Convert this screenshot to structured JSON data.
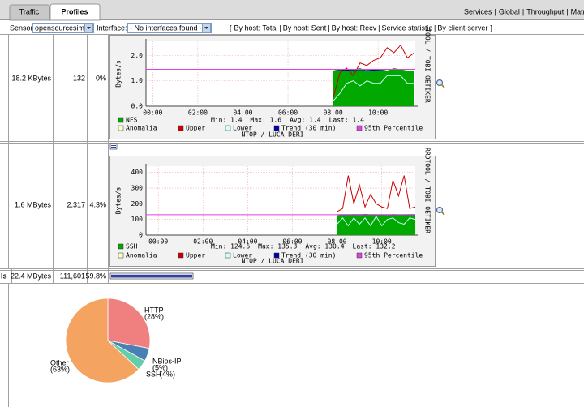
{
  "tabs": [
    "Traffic",
    "Profiles"
  ],
  "top_links": {
    "items": [
      "Services",
      "Global",
      "Throughput",
      "Matrix"
    ],
    "separator": "|"
  },
  "sensor_label": "Sensor:",
  "sensor_value": "opensourcesim",
  "interface_label": "Interface:",
  "interface_value": "- No interfaces found -",
  "view_links": {
    "open": "[",
    "items": [
      "By host: Total",
      "By host: Sent",
      "By host: Recv",
      "Service statistic",
      "By client-server"
    ],
    "separator": "|",
    "close": "]"
  },
  "rows": [
    {
      "bytes": "18.2 KBytes",
      "flows": "132",
      "percent": "0%",
      "graph": {
        "type": "line",
        "y_label": "Bytes/s",
        "side_text": "TOOL / TOBI OETIKER",
        "footer": "NTOP / LUCA DERI",
        "xlim": [
          -0.3,
          11.65
        ],
        "ylim": [
          0,
          2.55
        ],
        "xticks": [
          {
            "value": 0,
            "label": "00:00"
          },
          {
            "value": 2,
            "label": "02:00"
          },
          {
            "value": 4,
            "label": "04:00"
          },
          {
            "value": 6,
            "label": "06:00"
          },
          {
            "value": 8,
            "label": "08:00"
          },
          {
            "value": 10,
            "label": "10:00"
          }
        ],
        "yticks": [
          {
            "value": 0,
            "label": "0.0"
          },
          {
            "value": 1,
            "label": "1.0"
          },
          {
            "value": 2,
            "label": "2.0"
          }
        ],
        "grid": true,
        "stats": [
          "Min: 1.4",
          "Max: 1.6",
          "Avg: 1.4",
          "Last: 1.4"
        ],
        "series": [
          {
            "name": "NFS",
            "color": "#00a800",
            "kind": "area",
            "x": [
              8.0,
              8.3,
              8.6,
              8.9,
              9.2,
              9.5,
              9.8,
              10.1,
              10.4,
              10.7,
              11.0,
              11.3,
              11.6
            ],
            "values": [
              1.4,
              1.45,
              1.4,
              1.45,
              1.5,
              1.4,
              1.45,
              1.45,
              1.4,
              1.5,
              1.45,
              1.4,
              1.4
            ]
          },
          {
            "name": "Anomalia",
            "color": "#ffffcc",
            "kind": "line",
            "x": [],
            "values": []
          },
          {
            "name": "Upper",
            "color": "#cc0000",
            "kind": "line",
            "x": [
              8.0,
              8.3,
              8.6,
              8.9,
              9.2,
              9.5,
              9.8,
              10.1,
              10.4,
              10.7,
              11.0,
              11.3,
              11.6
            ],
            "values": [
              0.3,
              1.3,
              1.5,
              1.2,
              1.7,
              1.6,
              1.8,
              1.9,
              2.3,
              2.1,
              2.4,
              1.9,
              2.1
            ]
          },
          {
            "name": "Lower",
            "color": "#ccffff",
            "kind": "line",
            "x": [
              8.0,
              8.3,
              8.6,
              8.9,
              9.2,
              9.5,
              9.8,
              10.1,
              10.4,
              10.7,
              11.0,
              11.3,
              11.6
            ],
            "values": [
              0.2,
              0.5,
              0.9,
              1.0,
              0.8,
              1.0,
              0.9,
              0.9,
              1.2,
              1.2,
              1.2,
              0.9,
              0.9
            ]
          },
          {
            "name": "Trend (30 min)",
            "color": "#0000aa",
            "kind": "line",
            "x": [
              8.0,
              8.6,
              9.2,
              9.8,
              10.4,
              11.0,
              11.6
            ],
            "values": [
              1.45,
              1.42,
              1.4,
              1.42,
              1.45,
              1.45,
              1.45
            ]
          },
          {
            "name": "95th Percentile",
            "color": "#e040e0",
            "kind": "line",
            "x": [
              -0.3,
              11.65
            ],
            "values": [
              1.45,
              1.45
            ]
          }
        ]
      }
    },
    {
      "bytes": "1.6 MBytes",
      "flows": "2,317",
      "percent": "4.3%",
      "graph": {
        "type": "line",
        "y_label": "Bytes/s",
        "side_text": "RRDTOOL / TOBI OETIKER",
        "footer": "NTOP / LUCA DERI",
        "xlim": [
          -0.55,
          11.5
        ],
        "ylim": [
          0,
          440
        ],
        "xticks": [
          {
            "value": 0,
            "label": "00:00"
          },
          {
            "value": 2,
            "label": "02:00"
          },
          {
            "value": 4,
            "label": "04:00"
          },
          {
            "value": 6,
            "label": "06:00"
          },
          {
            "value": 8,
            "label": "08:00"
          },
          {
            "value": 10,
            "label": "10:00"
          }
        ],
        "yticks": [
          0,
          100,
          200,
          300,
          400
        ],
        "grid": true,
        "stats": [
          "Min: 124.6",
          "Max: 135.3",
          "Avg: 130.4",
          "Last: 132.2"
        ],
        "series": [
          {
            "name": "SSH",
            "color": "#00a800",
            "kind": "area",
            "x": [
              8.0,
              8.25,
              8.5,
              8.75,
              9.0,
              9.25,
              9.5,
              9.75,
              10.0,
              10.25,
              10.5,
              10.75,
              11.0,
              11.25,
              11.5
            ],
            "values": [
              125,
              130,
              128,
              133,
              127,
              135,
              130,
              129,
              132,
              126,
              134,
              131,
              128,
              130,
              132
            ]
          },
          {
            "name": "Anomalia",
            "color": "#ffffcc",
            "kind": "line",
            "x": [],
            "values": []
          },
          {
            "name": "Upper",
            "color": "#cc0000",
            "kind": "line",
            "x": [
              8.0,
              8.25,
              8.5,
              8.75,
              9.0,
              9.25,
              9.5,
              9.75,
              10.0,
              10.25,
              10.5,
              10.75,
              11.0,
              11.25,
              11.5
            ],
            "values": [
              150,
              170,
              380,
              200,
              320,
              180,
              260,
              200,
              180,
              170,
              350,
              250,
              380,
              170,
              180
            ]
          },
          {
            "name": "Lower",
            "color": "#ccffff",
            "kind": "line",
            "x": [
              8.0,
              8.25,
              8.5,
              8.75,
              9.0,
              9.25,
              9.5,
              9.75,
              10.0,
              10.25,
              10.5,
              10.75,
              11.0,
              11.25,
              11.5
            ],
            "values": [
              70,
              110,
              60,
              110,
              70,
              110,
              60,
              120,
              60,
              100,
              110,
              80,
              70,
              110,
              100
            ]
          },
          {
            "name": "Trend (30 min)",
            "color": "#0000aa",
            "kind": "line",
            "x": [
              8.0,
              9.0,
              10.0,
              11.0,
              11.5
            ],
            "values": [
              130,
              131,
              130,
              130,
              131
            ]
          },
          {
            "name": "95th Percentile",
            "color": "#e040e0",
            "kind": "line",
            "x": [
              -0.55,
              11.5
            ],
            "values": [
              130,
              130
            ]
          }
        ]
      }
    }
  ],
  "total": {
    "label": "ls",
    "bytes": "22.4 MBytes",
    "flows": "111,601",
    "percent": "59.8%"
  },
  "pie": {
    "type": "pie",
    "categories": [
      "HTTP",
      "NBios-IP",
      "SSH",
      "Other"
    ],
    "values": [
      28,
      5,
      4,
      63
    ],
    "value_labels": [
      "(28%)",
      "(5%)",
      "(4%)",
      "(63%)"
    ],
    "colors": [
      "#f08080",
      "#4a7fb5",
      "#66cdaa",
      "#f4a460"
    ]
  }
}
